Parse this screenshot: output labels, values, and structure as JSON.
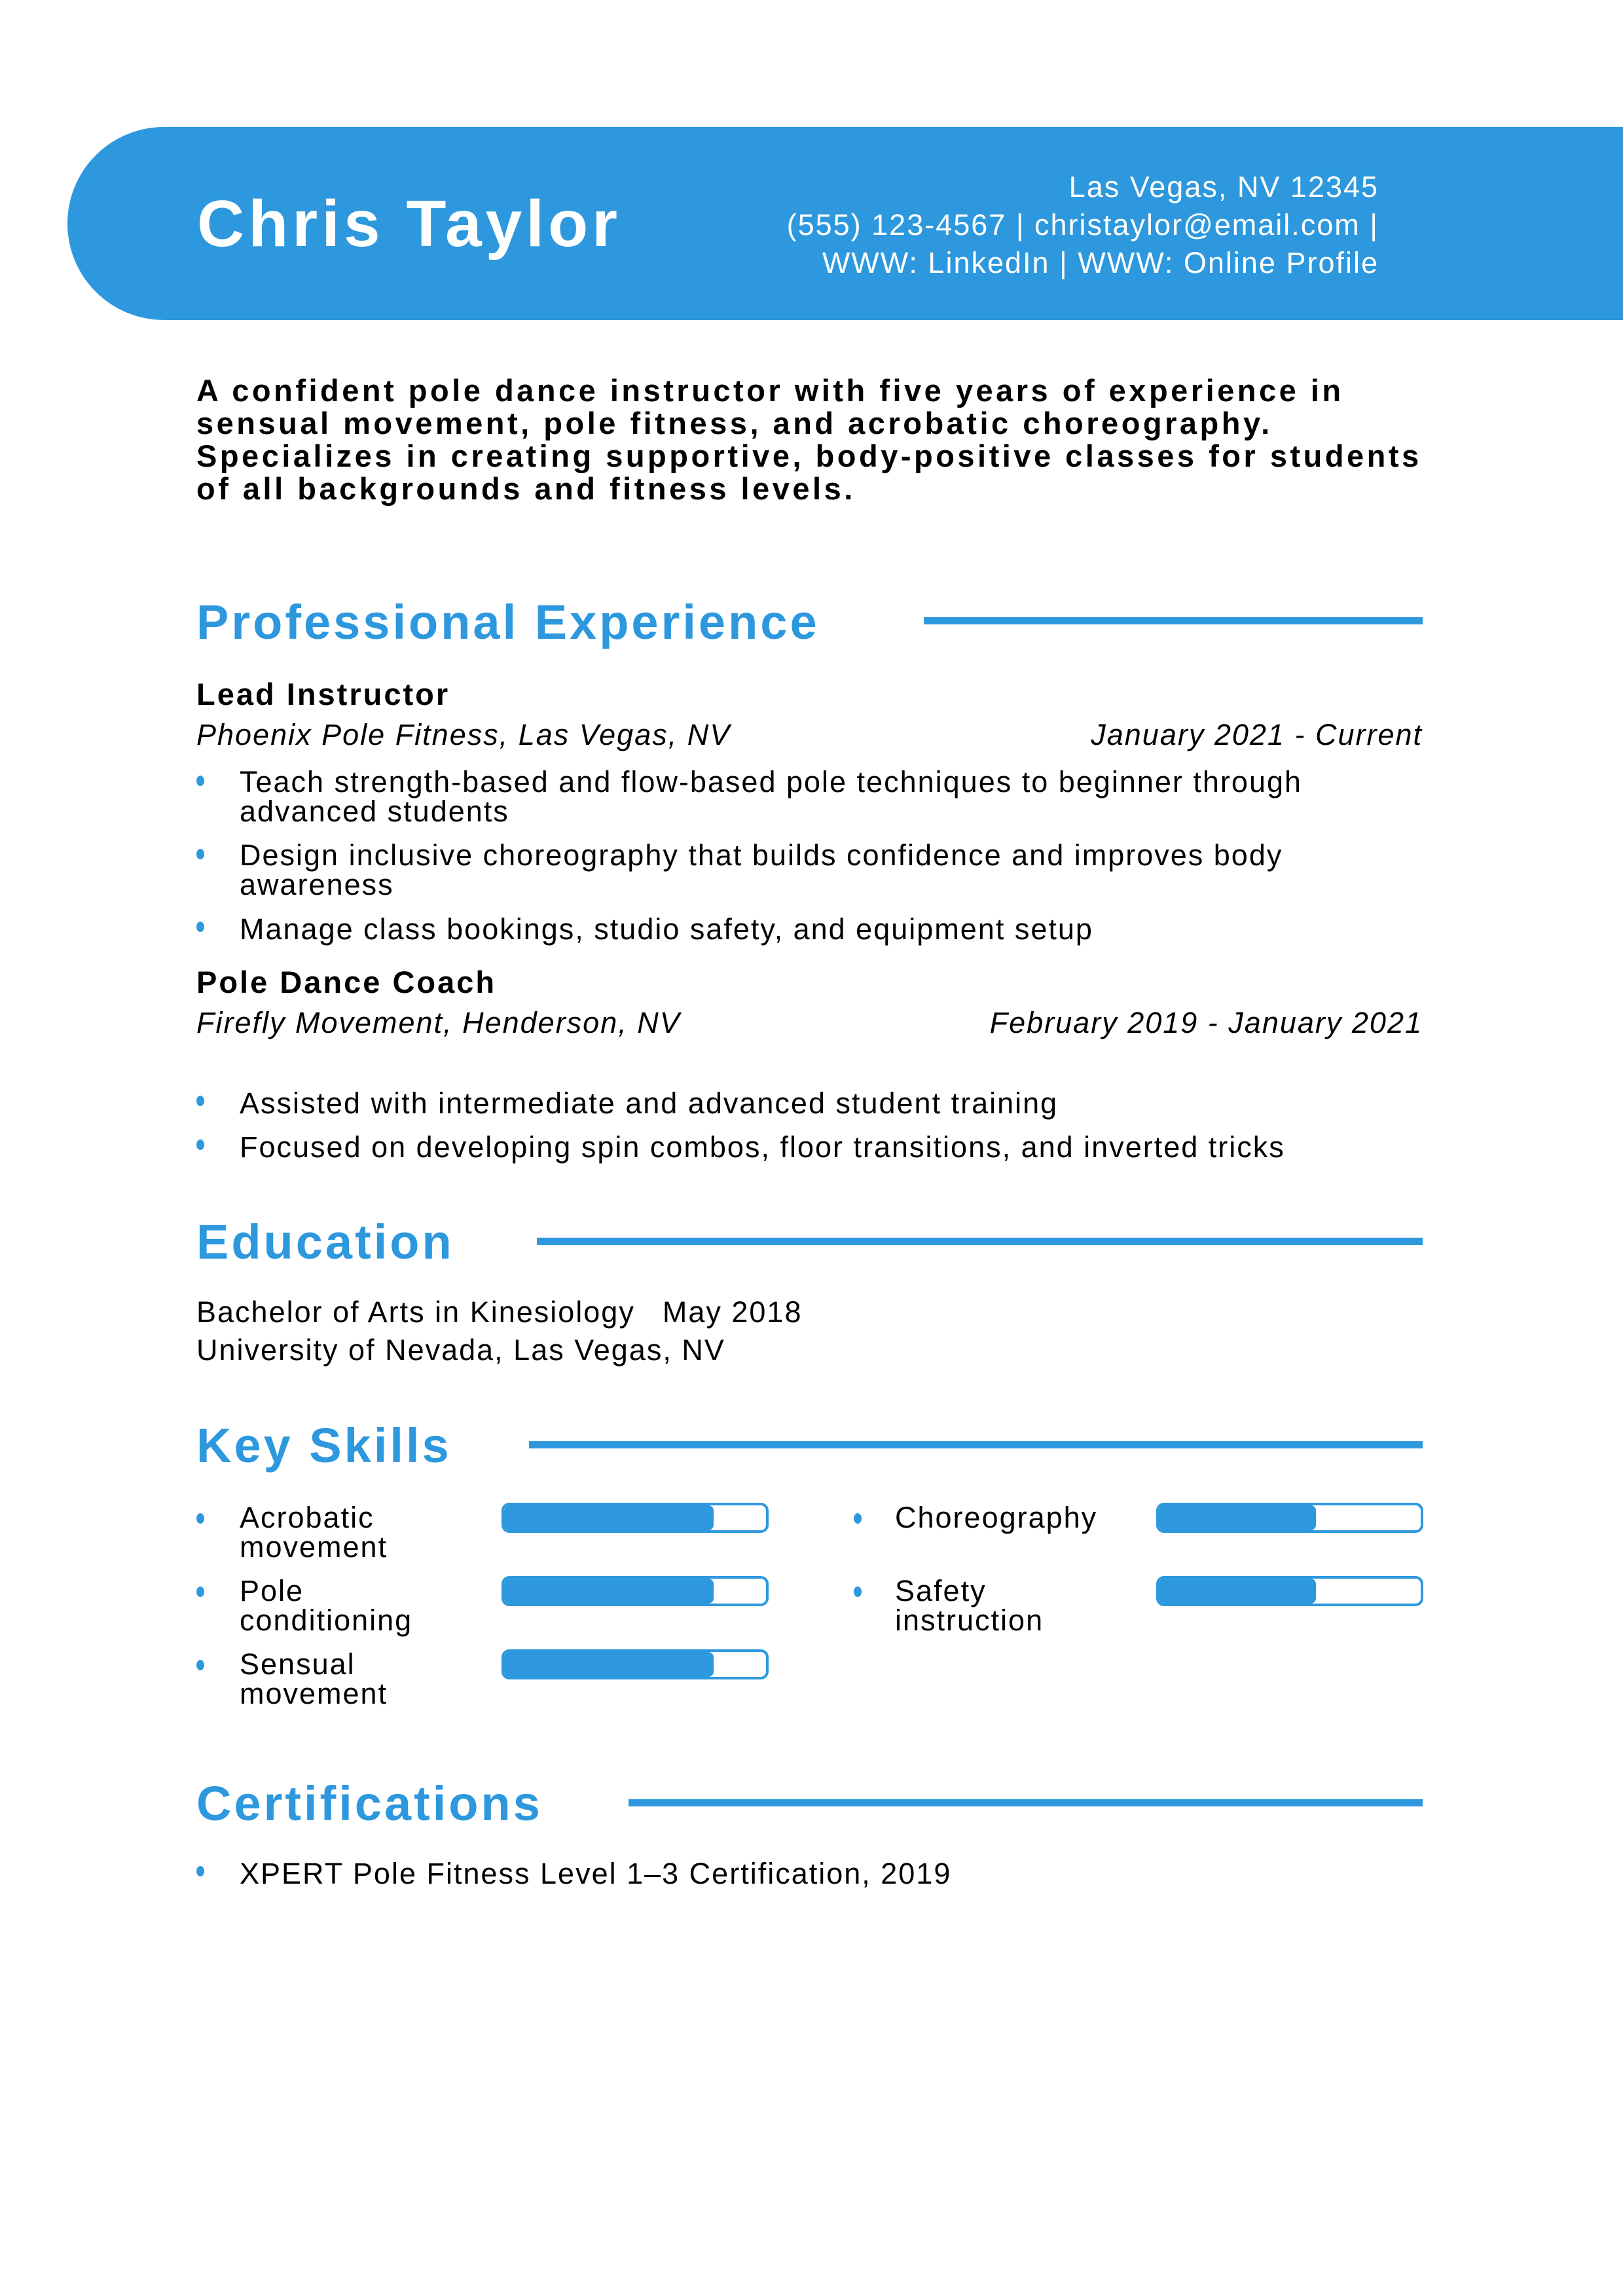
{
  "header": {
    "name": "Chris Taylor",
    "contact": [
      "Las Vegas, NV 12345",
      "(555) 123-4567 | christaylor@email.com |",
      "WWW: LinkedIn | WWW: Online Profile"
    ]
  },
  "summary": "A confident pole dance instructor with five years of experience in sensual movement, pole fitness, and acrobatic choreography. Specializes in creating supportive, body-positive classes for students of all backgrounds and fitness levels.",
  "experience": {
    "title": "Professional Experience",
    "jobs": [
      {
        "title": "Lead Instructor",
        "company": "Phoenix Pole Fitness, Las Vegas, NV",
        "dates": "January 2021 - Current",
        "bullets": [
          "Teach strength-based and flow-based pole techniques to beginner through advanced students",
          "Design inclusive choreography that builds confidence and improves body awareness",
          "Manage class bookings, studio safety, and equipment setup"
        ]
      },
      {
        "title": "Pole Dance Coach",
        "company": "Firefly Movement, Henderson, NV",
        "dates": "February 2019 - January 2021",
        "bullets": [
          "Assisted with intermediate and advanced student training",
          "Focused on developing spin combos, floor transitions, and inverted tricks"
        ]
      }
    ]
  },
  "education": {
    "title": "Education",
    "degree": "Bachelor of Arts in Kinesiology",
    "date": "May 2018",
    "school": "University of Nevada, Las Vegas, NV"
  },
  "skills": {
    "title": "Key Skills",
    "items": [
      {
        "name": "Acrobatic movement",
        "level": 0.8
      },
      {
        "name": "Pole conditioning",
        "level": 0.8
      },
      {
        "name": "Sensual movement",
        "level": 0.8
      },
      {
        "name": "Choreography",
        "level": 0.6
      },
      {
        "name": "Safety instruction",
        "level": 0.6
      }
    ]
  },
  "certifications": {
    "title": "Certifications",
    "items": [
      "XPERT Pole Fitness Level 1–3 Certification, 2019"
    ]
  },
  "colors": {
    "accent": "#2d98dd"
  }
}
